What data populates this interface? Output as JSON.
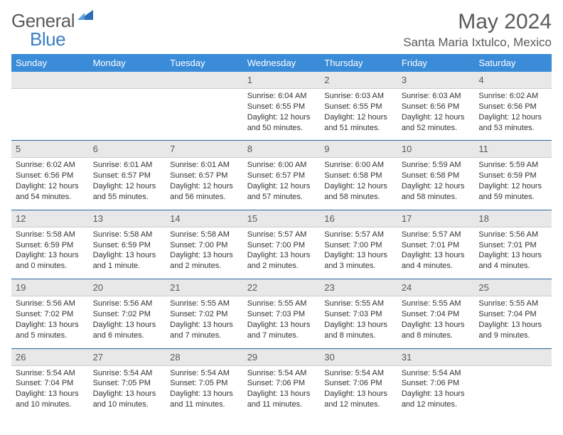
{
  "logo": {
    "text1": "General",
    "text2": "Blue"
  },
  "title": "May 2024",
  "location": "Santa Maria Ixtulco, Mexico",
  "headers": [
    "Sunday",
    "Monday",
    "Tuesday",
    "Wednesday",
    "Thursday",
    "Friday",
    "Saturday"
  ],
  "colors": {
    "header_bg": "#3a8bd8",
    "header_text": "#ffffff",
    "daynum_bg": "#e8e8e8",
    "row_border": "#2962a0",
    "text": "#333333",
    "title_text": "#5a5a5a",
    "logo_gray": "#5a5a5a",
    "logo_blue": "#3a7fc4"
  },
  "weeks": [
    [
      null,
      null,
      null,
      {
        "d": "1",
        "r": "6:04 AM",
        "s": "6:55 PM",
        "dl": "12 hours and 50 minutes."
      },
      {
        "d": "2",
        "r": "6:03 AM",
        "s": "6:55 PM",
        "dl": "12 hours and 51 minutes."
      },
      {
        "d": "3",
        "r": "6:03 AM",
        "s": "6:56 PM",
        "dl": "12 hours and 52 minutes."
      },
      {
        "d": "4",
        "r": "6:02 AM",
        "s": "6:56 PM",
        "dl": "12 hours and 53 minutes."
      }
    ],
    [
      {
        "d": "5",
        "r": "6:02 AM",
        "s": "6:56 PM",
        "dl": "12 hours and 54 minutes."
      },
      {
        "d": "6",
        "r": "6:01 AM",
        "s": "6:57 PM",
        "dl": "12 hours and 55 minutes."
      },
      {
        "d": "7",
        "r": "6:01 AM",
        "s": "6:57 PM",
        "dl": "12 hours and 56 minutes."
      },
      {
        "d": "8",
        "r": "6:00 AM",
        "s": "6:57 PM",
        "dl": "12 hours and 57 minutes."
      },
      {
        "d": "9",
        "r": "6:00 AM",
        "s": "6:58 PM",
        "dl": "12 hours and 58 minutes."
      },
      {
        "d": "10",
        "r": "5:59 AM",
        "s": "6:58 PM",
        "dl": "12 hours and 58 minutes."
      },
      {
        "d": "11",
        "r": "5:59 AM",
        "s": "6:59 PM",
        "dl": "12 hours and 59 minutes."
      }
    ],
    [
      {
        "d": "12",
        "r": "5:58 AM",
        "s": "6:59 PM",
        "dl": "13 hours and 0 minutes."
      },
      {
        "d": "13",
        "r": "5:58 AM",
        "s": "6:59 PM",
        "dl": "13 hours and 1 minute."
      },
      {
        "d": "14",
        "r": "5:58 AM",
        "s": "7:00 PM",
        "dl": "13 hours and 2 minutes."
      },
      {
        "d": "15",
        "r": "5:57 AM",
        "s": "7:00 PM",
        "dl": "13 hours and 2 minutes."
      },
      {
        "d": "16",
        "r": "5:57 AM",
        "s": "7:00 PM",
        "dl": "13 hours and 3 minutes."
      },
      {
        "d": "17",
        "r": "5:57 AM",
        "s": "7:01 PM",
        "dl": "13 hours and 4 minutes."
      },
      {
        "d": "18",
        "r": "5:56 AM",
        "s": "7:01 PM",
        "dl": "13 hours and 4 minutes."
      }
    ],
    [
      {
        "d": "19",
        "r": "5:56 AM",
        "s": "7:02 PM",
        "dl": "13 hours and 5 minutes."
      },
      {
        "d": "20",
        "r": "5:56 AM",
        "s": "7:02 PM",
        "dl": "13 hours and 6 minutes."
      },
      {
        "d": "21",
        "r": "5:55 AM",
        "s": "7:02 PM",
        "dl": "13 hours and 7 minutes."
      },
      {
        "d": "22",
        "r": "5:55 AM",
        "s": "7:03 PM",
        "dl": "13 hours and 7 minutes."
      },
      {
        "d": "23",
        "r": "5:55 AM",
        "s": "7:03 PM",
        "dl": "13 hours and 8 minutes."
      },
      {
        "d": "24",
        "r": "5:55 AM",
        "s": "7:04 PM",
        "dl": "13 hours and 8 minutes."
      },
      {
        "d": "25",
        "r": "5:55 AM",
        "s": "7:04 PM",
        "dl": "13 hours and 9 minutes."
      }
    ],
    [
      {
        "d": "26",
        "r": "5:54 AM",
        "s": "7:04 PM",
        "dl": "13 hours and 10 minutes."
      },
      {
        "d": "27",
        "r": "5:54 AM",
        "s": "7:05 PM",
        "dl": "13 hours and 10 minutes."
      },
      {
        "d": "28",
        "r": "5:54 AM",
        "s": "7:05 PM",
        "dl": "13 hours and 11 minutes."
      },
      {
        "d": "29",
        "r": "5:54 AM",
        "s": "7:06 PM",
        "dl": "13 hours and 11 minutes."
      },
      {
        "d": "30",
        "r": "5:54 AM",
        "s": "7:06 PM",
        "dl": "13 hours and 12 minutes."
      },
      {
        "d": "31",
        "r": "5:54 AM",
        "s": "7:06 PM",
        "dl": "13 hours and 12 minutes."
      },
      null
    ]
  ]
}
